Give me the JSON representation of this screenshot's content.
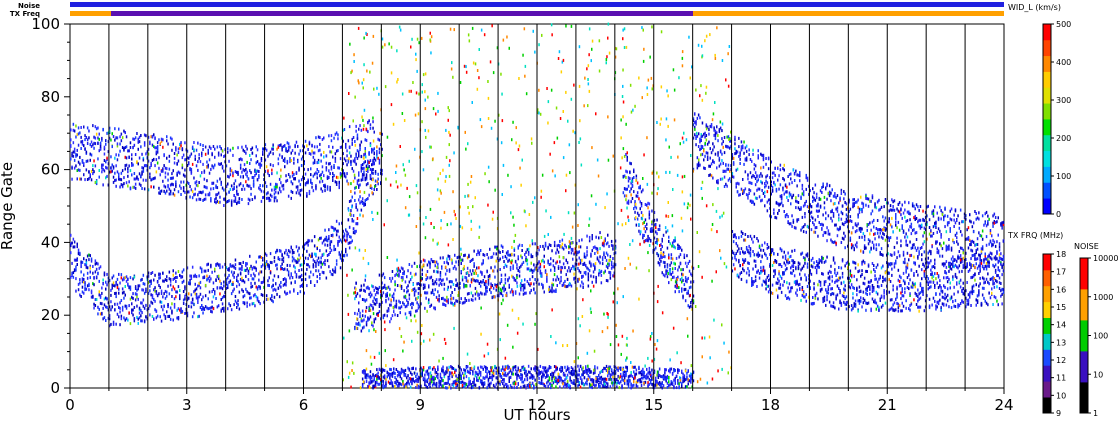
{
  "chart_data": {
    "type": "heatmap",
    "xlabel": "UT hours",
    "ylabel": "Range Gate",
    "x_ticks": [
      "0",
      "3",
      "6",
      "9",
      "12",
      "15",
      "18",
      "21",
      "24"
    ],
    "y_ticks": [
      "0",
      "20",
      "40",
      "60",
      "80",
      "100"
    ],
    "xlim": [
      0,
      24
    ],
    "ylim": [
      0,
      100
    ],
    "grid": "vertical lines every 1 UT hour",
    "strips": {
      "noise_label": "Noise",
      "txfreq_label": "TX Freq"
    },
    "colorbars": [
      {
        "title": "WID_L (km/s)",
        "ticks": [
          "0",
          "100",
          "200",
          "300",
          "400",
          "500"
        ],
        "range": [
          0,
          500
        ],
        "colors": [
          "#0000ff",
          "#0050ff",
          "#00aaff",
          "#00e0e0",
          "#00e0a0",
          "#00e000",
          "#80e000",
          "#e0e000",
          "#ffcc00",
          "#ff8800",
          "#ff4400",
          "#ff0000"
        ]
      },
      {
        "title": "TX FRQ (MHz)",
        "ticks": [
          "9",
          "10",
          "11",
          "12",
          "13",
          "14",
          "15",
          "16",
          "17",
          "18"
        ],
        "colors": [
          "#000000",
          "#6a1a8a",
          "#3a10c0",
          "#1a4aff",
          "#00c8c8",
          "#00d000",
          "#ffd000",
          "#ffa000",
          "#ff6000",
          "#ff0000"
        ]
      },
      {
        "title": "NOISE",
        "ticks": [
          "1",
          "10",
          "100",
          "1000",
          "10000"
        ],
        "colors": [
          "#000000",
          "#3a10c0",
          "#00cc00",
          "#ffa000",
          "#ff0000"
        ]
      }
    ],
    "series": [
      {
        "name": "",
        "x": [
          0,
          1,
          2,
          3,
          4,
          5,
          6,
          7,
          7.5,
          8
        ],
        "y": [
          35,
          24,
          25,
          26,
          28,
          30,
          33,
          40,
          55,
          63
        ]
      },
      {
        "name": "",
        "x": [
          0,
          2,
          4,
          6,
          7.8
        ],
        "y": [
          65,
          62,
          58,
          60,
          66
        ]
      },
      {
        "name": "",
        "x": [
          7.3,
          9,
          11,
          13,
          14
        ],
        "y": [
          22,
          28,
          32,
          34,
          37
        ]
      },
      {
        "name": "",
        "x": [
          14.2,
          14.8,
          15.4,
          16
        ],
        "y": [
          60,
          45,
          35,
          28
        ]
      },
      {
        "name": "",
        "x": [
          16,
          17,
          18,
          19,
          20,
          22,
          24
        ],
        "y": [
          68,
          62,
          55,
          50,
          46,
          42,
          40
        ]
      },
      {
        "name": "",
        "x": [
          17,
          18,
          20,
          22,
          24
        ],
        "y": [
          38,
          32,
          28,
          28,
          30
        ]
      },
      {
        "name": "",
        "x": [
          7.5,
          10,
          12,
          14,
          16
        ],
        "y": [
          2,
          3,
          3,
          3,
          2
        ]
      }
    ]
  }
}
